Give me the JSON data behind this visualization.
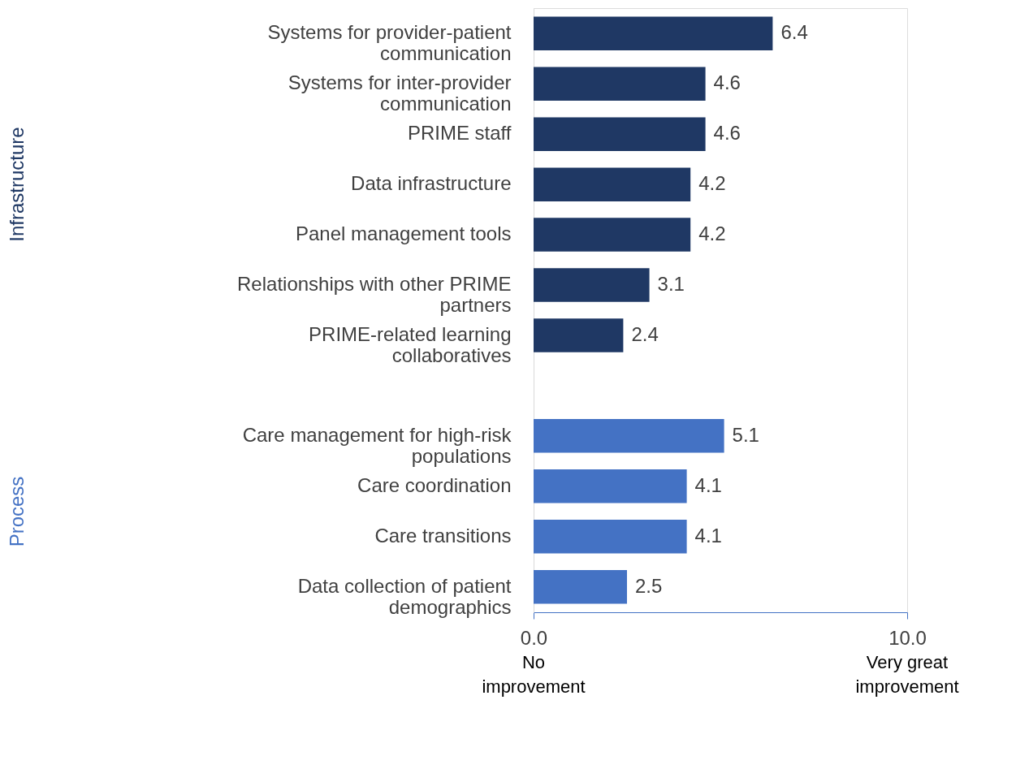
{
  "chart_data": {
    "type": "bar",
    "orientation": "horizontal",
    "categories": [
      "Systems for provider-patient communication",
      "Systems for inter-provider communication",
      "PRIME staff",
      "Data infrastructure",
      "Panel management tools",
      "Relationships with other PRIME partners",
      "PRIME-related learning collaboratives",
      null,
      "Care management for high-risk populations",
      "Care coordination",
      "Care transitions",
      "Data collection of patient demographics"
    ],
    "series": [
      {
        "name": "Infrastructure",
        "color": "#1f3864",
        "values": [
          6.4,
          4.6,
          4.6,
          4.2,
          4.2,
          3.1,
          2.4,
          null,
          null,
          null,
          null,
          null
        ]
      },
      {
        "name": "Process",
        "color": "#4472c4",
        "values": [
          null,
          null,
          null,
          null,
          null,
          null,
          null,
          null,
          5.1,
          4.1,
          4.1,
          2.5
        ]
      }
    ],
    "xlim": [
      0,
      10
    ],
    "xticks": [
      {
        "value": 0,
        "label": "0.0"
      },
      {
        "value": 10,
        "label": "10.0"
      }
    ],
    "annotations": [
      "No improvement",
      "Very great improvement"
    ],
    "data_labels": true,
    "legend": false,
    "grid": false
  }
}
